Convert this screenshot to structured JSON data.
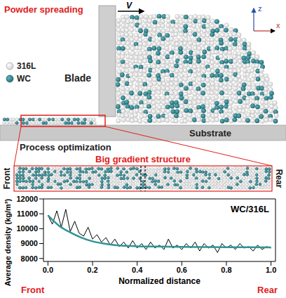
{
  "diagram": {
    "title": "Powder spreading",
    "velocity_label": "V",
    "axes": {
      "z": "z",
      "x": "x"
    },
    "blade_label": "Blade",
    "legend": [
      {
        "label": "316L",
        "color": "#ffffff"
      },
      {
        "label": "WC",
        "color": "#1f6f78"
      }
    ],
    "substrate_label": "Substrate",
    "process_label": "Process optimization",
    "zoom_title": "Big gradient structure",
    "zoom_ends": {
      "left": "Front",
      "right": "Rear"
    }
  },
  "chart_data": {
    "type": "line",
    "x_label": "Normalized distance",
    "y_label": "Average density (kg/m³)",
    "annotation": "WC/316L",
    "x_end_labels": {
      "left": "Front",
      "right": "Rear"
    },
    "xlim": [
      -0.02,
      1.02
    ],
    "xticks": [
      {
        "value": 0,
        "label": "0.0"
      },
      {
        "value": 0.2,
        "label": "0.2"
      },
      {
        "value": 0.4,
        "label": "0.4"
      },
      {
        "value": 0.6,
        "label": "0.6"
      },
      {
        "value": 0.8,
        "label": "0.8"
      },
      {
        "value": 1,
        "label": "1.0"
      }
    ],
    "ylim": [
      7800,
      12000
    ],
    "yticks": [
      8000,
      9000,
      10000,
      11000,
      12000
    ],
    "grid": false,
    "series": [
      {
        "color": "#000000",
        "x": [
          0,
          0.02,
          0.04,
          0.06,
          0.08,
          0.1,
          0.12,
          0.14,
          0.16,
          0.18,
          0.2,
          0.22,
          0.24,
          0.26,
          0.28,
          0.3,
          0.32,
          0.34,
          0.36,
          0.38,
          0.4,
          0.42,
          0.44,
          0.46,
          0.48,
          0.5,
          0.52,
          0.54,
          0.56,
          0.58,
          0.6,
          0.62,
          0.64,
          0.66,
          0.68,
          0.7,
          0.72,
          0.74,
          0.76,
          0.78,
          0.8,
          0.82,
          0.84,
          0.86,
          0.88,
          0.9,
          0.92,
          0.94,
          0.96,
          0.98,
          1
        ],
        "values": [
          10900,
          10300,
          11200,
          10100,
          11300,
          9800,
          10500,
          9700,
          9500,
          10100,
          9300,
          9600,
          9100,
          9400,
          8900,
          9300,
          8800,
          9100,
          8700,
          9200,
          8700,
          9000,
          8600,
          9100,
          8700,
          8900,
          8600,
          9300,
          8700,
          8900,
          8600,
          9000,
          8700,
          9100,
          8500,
          9000,
          8700,
          8900,
          8400,
          9000,
          8700,
          8900,
          8600,
          9000,
          8700,
          8800,
          8500,
          8900,
          8600,
          8800,
          8700
        ]
      },
      {
        "color": "#2f9494",
        "x": [
          0,
          0.05,
          0.1,
          0.15,
          0.2,
          0.25,
          0.3,
          0.35,
          0.4,
          0.5,
          0.6,
          0.7,
          0.8,
          0.9,
          1
        ],
        "values": [
          10900,
          10200,
          9750,
          9400,
          9150,
          9000,
          8900,
          8850,
          8820,
          8800,
          8780,
          8770,
          8760,
          8750,
          8740
        ]
      }
    ]
  }
}
